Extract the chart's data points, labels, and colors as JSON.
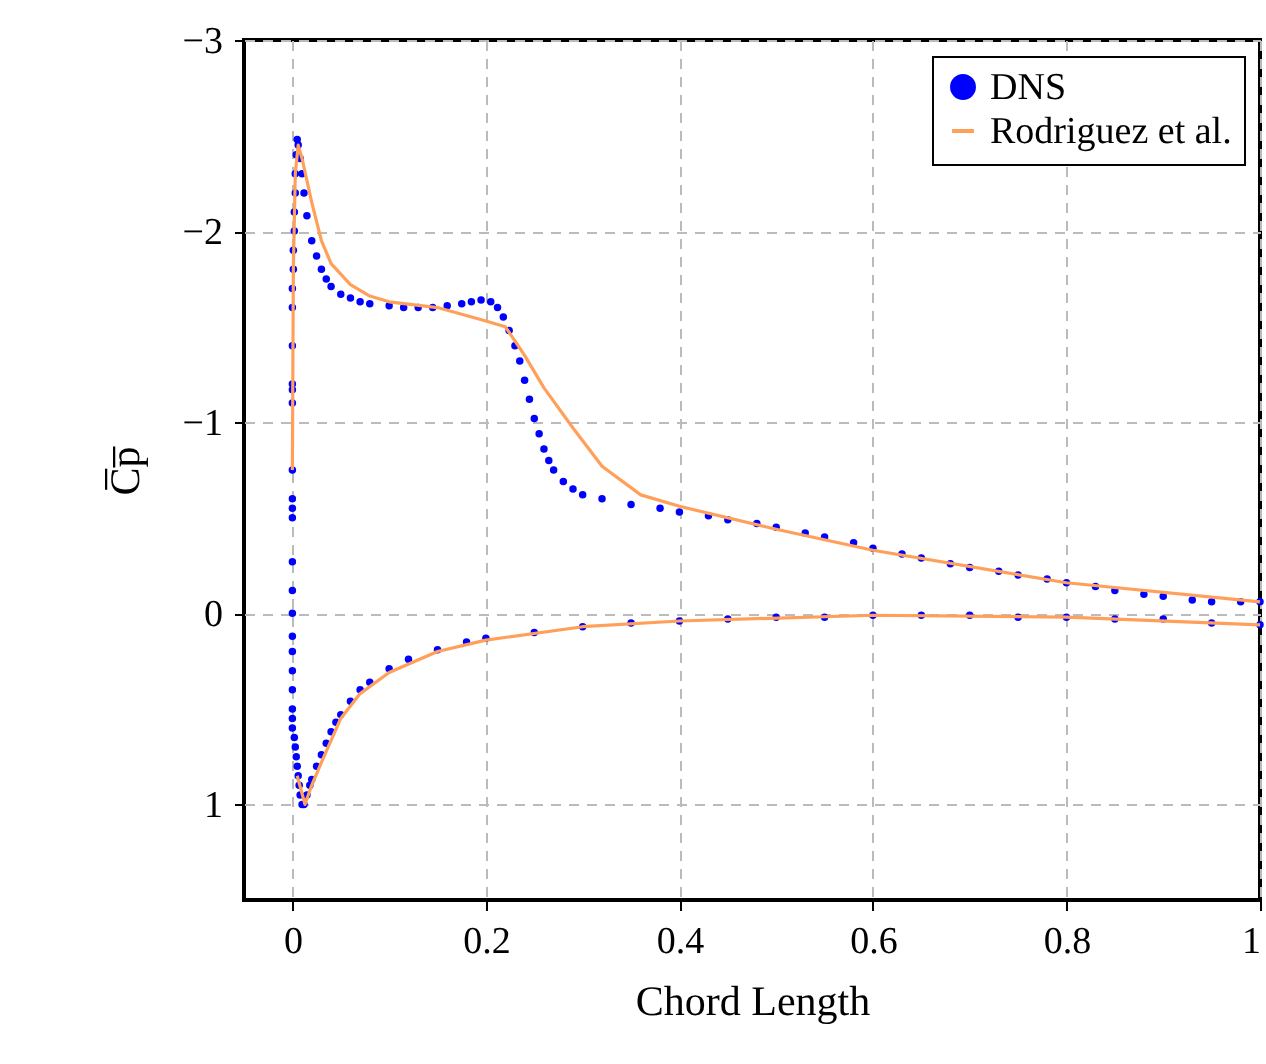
{
  "chart_data": {
    "type": "scatter",
    "xlabel": "Chord Length",
    "ylabel": "C̅p̅",
    "xlim": [
      -0.05,
      1
    ],
    "ylim": [
      1.5,
      -3
    ],
    "xticks": [
      0,
      0.2,
      0.4,
      0.6,
      0.8,
      1
    ],
    "yticks": [
      {
        "value": -3,
        "label": "−3"
      },
      {
        "value": -2,
        "label": "−2"
      },
      {
        "value": -1,
        "label": "−1"
      },
      0,
      1
    ],
    "grid": true,
    "legend": "top right",
    "series": [
      {
        "name": "DNS",
        "marker": "circle",
        "color": "#0000ff",
        "x": [
          0.0,
          0.0,
          0.0,
          0.0,
          0.0,
          0.0,
          0.0,
          0.0,
          0.0,
          0.0,
          0.0,
          0.0,
          0.0,
          0.0,
          0.0,
          0.0,
          0.0,
          0.0,
          0.0,
          0.0,
          0.001,
          0.001,
          0.002,
          0.002,
          0.003,
          0.003,
          0.004,
          0.005,
          0.006,
          0.008,
          0.01,
          0.012,
          0.015,
          0.02,
          0.025,
          0.03,
          0.035,
          0.04,
          0.05,
          0.06,
          0.07,
          0.08,
          0.1,
          0.115,
          0.13,
          0.145,
          0.16,
          0.175,
          0.185,
          0.195,
          0.205,
          0.212,
          0.218,
          0.224,
          0.23,
          0.235,
          0.24,
          0.245,
          0.25,
          0.255,
          0.26,
          0.265,
          0.27,
          0.28,
          0.29,
          0.3,
          0.32,
          0.35,
          0.38,
          0.4,
          0.43,
          0.45,
          0.48,
          0.5,
          0.53,
          0.55,
          0.58,
          0.6,
          0.63,
          0.65,
          0.68,
          0.7,
          0.73,
          0.75,
          0.78,
          0.8,
          0.83,
          0.85,
          0.88,
          0.9,
          0.93,
          0.95,
          0.98,
          1.0,
          0.002,
          0.003,
          0.004,
          0.005,
          0.006,
          0.007,
          0.008,
          0.01,
          0.012,
          0.015,
          0.018,
          0.02,
          0.025,
          0.03,
          0.035,
          0.04,
          0.045,
          0.05,
          0.06,
          0.07,
          0.08,
          0.1,
          0.12,
          0.15,
          0.18,
          0.2,
          0.25,
          0.3,
          0.35,
          0.4,
          0.45,
          0.5,
          0.55,
          0.6,
          0.65,
          0.7,
          0.75,
          0.8,
          0.85,
          0.9,
          0.95,
          1.0
        ],
        "values": [
          -0.75,
          -0.6,
          -0.55,
          -0.5,
          -0.27,
          -0.12,
          0.0,
          0.12,
          0.2,
          0.3,
          0.4,
          0.5,
          0.55,
          0.6,
          -1.1,
          -1.17,
          -1.2,
          -1.4,
          -1.6,
          -1.7,
          -1.8,
          -1.9,
          -2.0,
          -2.1,
          -2.2,
          -2.3,
          -2.4,
          -2.48,
          -2.45,
          -2.38,
          -2.3,
          -2.2,
          -2.08,
          -1.95,
          -1.87,
          -1.8,
          -1.75,
          -1.71,
          -1.67,
          -1.65,
          -1.63,
          -1.62,
          -1.61,
          -1.6,
          -1.6,
          -1.6,
          -1.61,
          -1.62,
          -1.63,
          -1.64,
          -1.63,
          -1.6,
          -1.55,
          -1.48,
          -1.4,
          -1.32,
          -1.22,
          -1.12,
          -1.02,
          -0.94,
          -0.86,
          -0.8,
          -0.75,
          -0.69,
          -0.65,
          -0.62,
          -0.6,
          -0.57,
          -0.55,
          -0.53,
          -0.51,
          -0.49,
          -0.47,
          -0.45,
          -0.42,
          -0.4,
          -0.37,
          -0.34,
          -0.31,
          -0.29,
          -0.26,
          -0.24,
          -0.22,
          -0.2,
          -0.18,
          -0.16,
          -0.14,
          -0.12,
          -0.1,
          -0.09,
          -0.07,
          -0.06,
          -0.06,
          -0.06,
          0.65,
          0.7,
          0.75,
          0.8,
          0.85,
          0.9,
          0.95,
          1.0,
          1.0,
          0.95,
          0.9,
          0.87,
          0.8,
          0.74,
          0.68,
          0.62,
          0.57,
          0.53,
          0.46,
          0.4,
          0.36,
          0.29,
          0.24,
          0.19,
          0.15,
          0.13,
          0.1,
          0.07,
          0.05,
          0.04,
          0.03,
          0.02,
          0.02,
          0.01,
          0.01,
          0.01,
          0.02,
          0.02,
          0.03,
          0.03,
          0.05,
          0.06
        ]
      },
      {
        "name": "Rodriguez et al.",
        "type": "line",
        "color": "#ffa05a",
        "x": [
          0.0,
          0.001,
          0.003,
          0.006,
          0.01,
          0.02,
          0.03,
          0.04,
          0.06,
          0.08,
          0.1,
          0.15,
          0.2,
          0.22,
          0.24,
          0.26,
          0.29,
          0.32,
          0.36,
          0.4,
          0.5,
          0.6,
          0.8,
          1.0
        ],
        "values": [
          -0.75,
          -1.8,
          -2.3,
          -2.45,
          -2.38,
          -2.15,
          -1.95,
          -1.83,
          -1.72,
          -1.66,
          -1.63,
          -1.6,
          -1.53,
          -1.5,
          -1.35,
          -1.18,
          -0.97,
          -0.77,
          -0.62,
          -0.56,
          -0.44,
          -0.33,
          -0.16,
          -0.06
        ]
      },
      {
        "type": "line",
        "color": "#ffa05a",
        "x": [
          0.005,
          0.013,
          0.02,
          0.03,
          0.05,
          0.07,
          0.1,
          0.15,
          0.2,
          0.3,
          0.4,
          0.6,
          0.8,
          1.0
        ],
        "values": [
          0.85,
          1.0,
          0.9,
          0.78,
          0.55,
          0.42,
          0.31,
          0.2,
          0.14,
          0.07,
          0.04,
          0.01,
          0.02,
          0.06
        ]
      }
    ]
  }
}
